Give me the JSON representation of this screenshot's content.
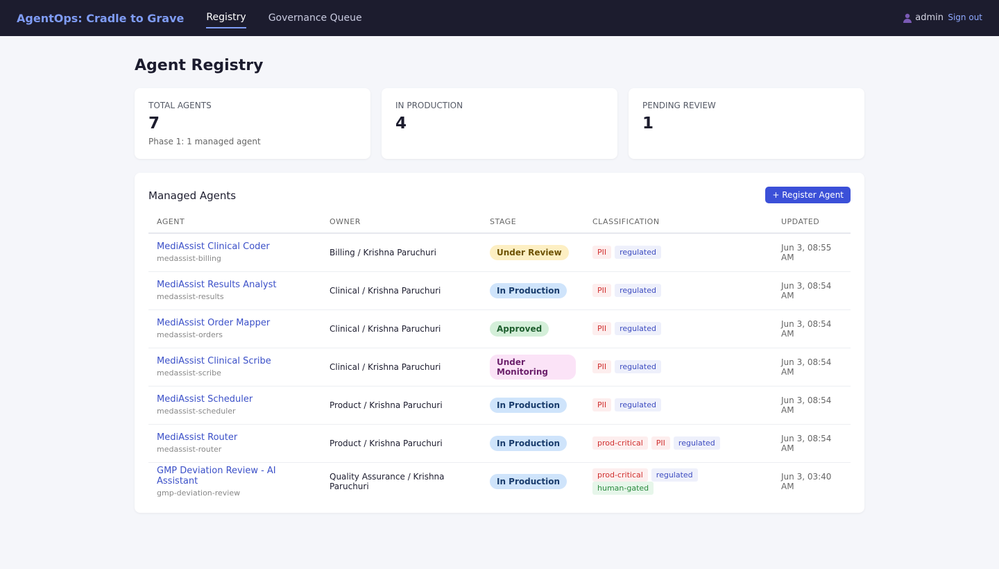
{
  "nav": {
    "brand": "AgentOps: Cradle to Grave",
    "links": [
      "Registry",
      "Governance Queue"
    ],
    "user": "admin",
    "signout": "Sign out"
  },
  "header": {
    "title": "Agent Registry"
  },
  "stats": [
    {
      "label": "TOTAL AGENTS",
      "value": 7,
      "note": "Phase 1: 1 managed agent"
    },
    {
      "label": "IN PRODUCTION",
      "value": 4
    },
    {
      "label": "PENDING REVIEW",
      "value": 1
    }
  ],
  "table": {
    "title": "Managed Agents",
    "button": "+ Register Agent",
    "columns": [
      "AGENT",
      "OWNER",
      "STAGE",
      "CLASSIFICATION",
      "UPDATED"
    ],
    "rows": [
      {
        "name": "MediAssist Clinical Coder",
        "id": "medassist-billing",
        "owner": "Billing / Krishna Paruchuri",
        "stage": {
          "label": "Under Review",
          "color": "#fdefc3",
          "text": "#6e5200"
        },
        "tags": [
          {
            "label": "PII",
            "color": "#fdeeee",
            "text": "#d0302f"
          },
          {
            "label": "regulated",
            "color": "#eef0fb",
            "text": "#3d4cc0"
          }
        ],
        "updated": "Jun 3, 08:55 AM"
      },
      {
        "name": "MediAssist Results Analyst",
        "id": "medassist-results",
        "owner": "Clinical / Krishna Paruchuri",
        "stage": {
          "label": "In Production",
          "color": "#cfe4fb",
          "text": "#1a3d6d"
        },
        "tags": [
          {
            "label": "PII",
            "color": "#fdeeee",
            "text": "#d0302f"
          },
          {
            "label": "regulated",
            "color": "#eef0fb",
            "text": "#3d4cc0"
          }
        ],
        "updated": "Jun 3, 08:54 AM"
      },
      {
        "name": "MediAssist Order Mapper",
        "id": "medassist-orders",
        "owner": "Clinical / Krishna Paruchuri",
        "stage": {
          "label": "Approved",
          "color": "#d4efd9",
          "text": "#1e5e2e"
        },
        "tags": [
          {
            "label": "PII",
            "color": "#fdeeee",
            "text": "#d0302f"
          },
          {
            "label": "regulated",
            "color": "#eef0fb",
            "text": "#3d4cc0"
          }
        ],
        "updated": "Jun 3, 08:54 AM"
      },
      {
        "name": "MediAssist Clinical Scribe",
        "id": "medassist-scribe",
        "owner": "Clinical / Krishna Paruchuri",
        "stage": {
          "label": "Under Monitoring",
          "color": "#fbe3f7",
          "text": "#6b1f6b"
        },
        "tags": [
          {
            "label": "PII",
            "color": "#fdeeee",
            "text": "#d0302f"
          },
          {
            "label": "regulated",
            "color": "#eef0fb",
            "text": "#3d4cc0"
          }
        ],
        "updated": "Jun 3, 08:54 AM"
      },
      {
        "name": "MediAssist Scheduler",
        "id": "medassist-scheduler",
        "owner": "Product / Krishna Paruchuri",
        "stage": {
          "label": "In Production",
          "color": "#cfe4fb",
          "text": "#1a3d6d"
        },
        "tags": [
          {
            "label": "PII",
            "color": "#fdeeee",
            "text": "#d0302f"
          },
          {
            "label": "regulated",
            "color": "#eef0fb",
            "text": "#3d4cc0"
          }
        ],
        "updated": "Jun 3, 08:54 AM"
      },
      {
        "name": "MediAssist Router",
        "id": "medassist-router",
        "owner": "Product / Krishna Paruchuri",
        "stage": {
          "label": "In Production",
          "color": "#cfe4fb",
          "text": "#1a3d6d"
        },
        "tags": [
          {
            "label": "prod-critical",
            "color": "#fdeeee",
            "text": "#d0302f"
          },
          {
            "label": "PII",
            "color": "#fdeeee",
            "text": "#d0302f"
          },
          {
            "label": "regulated",
            "color": "#eef0fb",
            "text": "#3d4cc0"
          }
        ],
        "updated": "Jun 3, 08:54 AM"
      },
      {
        "name": "GMP Deviation Review - AI Assistant",
        "id": "gmp-deviation-review",
        "owner": "Quality Assurance / Krishna Paruchuri",
        "stage": {
          "label": "In Production",
          "color": "#cfe4fb",
          "text": "#1a3d6d"
        },
        "tags": [
          {
            "label": "prod-critical",
            "color": "#fdeeee",
            "text": "#d0302f"
          },
          {
            "label": "regulated",
            "color": "#eef0fb",
            "text": "#3d4cc0"
          },
          {
            "label": "human-gated",
            "color": "#e6f6ea",
            "text": "#2a8a3e"
          }
        ],
        "updated": "Jun 3, 03:40 AM"
      }
    ]
  }
}
